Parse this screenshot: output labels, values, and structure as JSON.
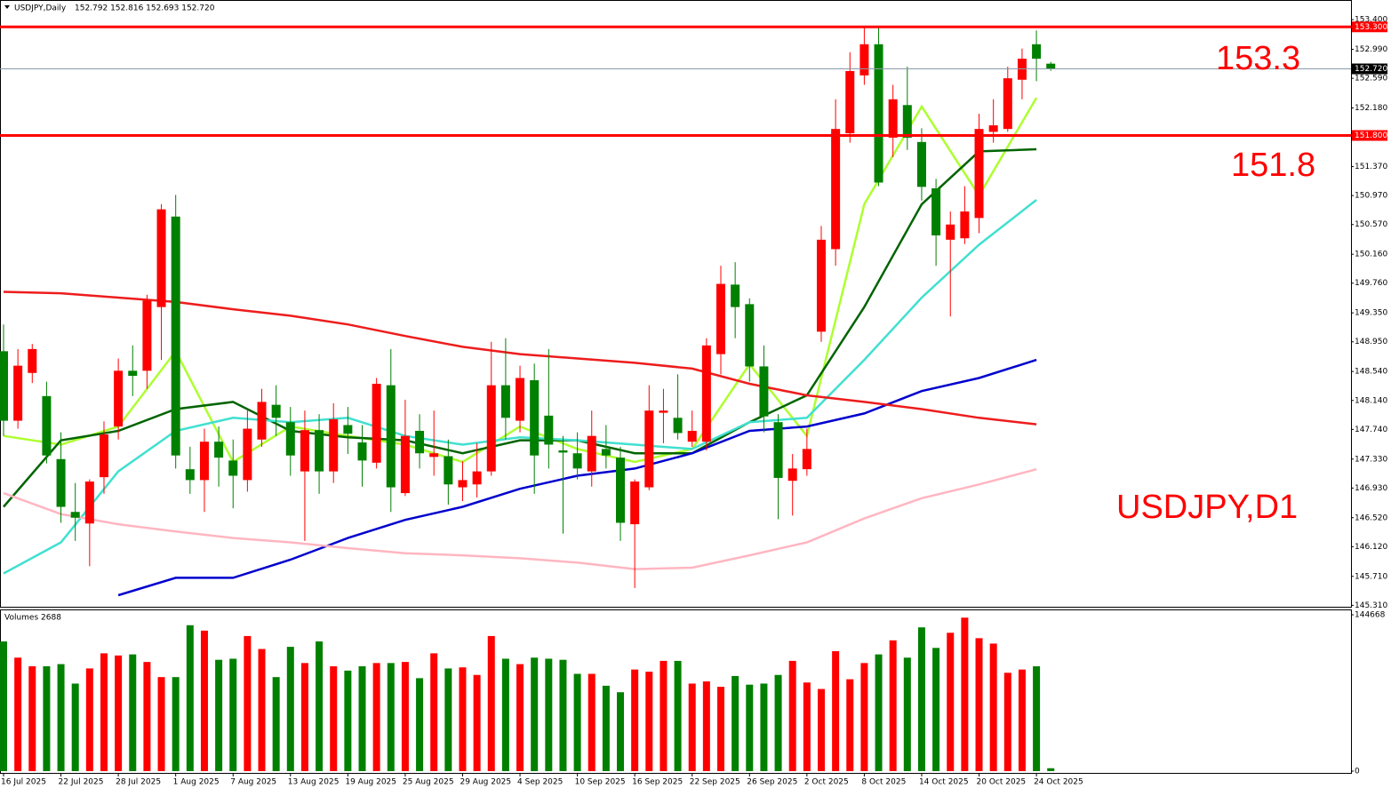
{
  "chart_data": [
    {
      "type": "candlestick",
      "title": "USDJPY,Daily",
      "quote": "152.792 152.816 152.693 152.720",
      "categories": [
        "16 Jul 2025",
        null,
        null,
        null,
        "22 Jul 2025",
        null,
        null,
        null,
        "28 Jul 2025",
        null,
        null,
        null,
        "1 Aug 2025",
        null,
        null,
        null,
        "7 Aug 2025",
        null,
        null,
        null,
        "13 Aug 2025",
        null,
        null,
        null,
        "19 Aug 2025",
        null,
        null,
        null,
        "25 Aug 2025",
        null,
        null,
        null,
        "29 Aug 2025",
        null,
        null,
        null,
        "4 Sep 2025",
        null,
        null,
        null,
        "10 Sep 2025",
        null,
        null,
        null,
        "16 Sep 2025",
        null,
        null,
        null,
        "22 Sep 2025",
        null,
        null,
        null,
        "26 Sep 2025",
        null,
        null,
        null,
        "2 Oct 2025",
        null,
        null,
        null,
        "8 Oct 2025",
        null,
        null,
        null,
        "14 Oct 2025",
        null,
        null,
        null,
        "20 Oct 2025",
        null,
        null,
        null,
        "24 Oct 2025",
        null
      ],
      "open": [
        148.82,
        147.86,
        148.52,
        148.2,
        147.33,
        146.6,
        146.44,
        147.08,
        147.78,
        148.55,
        148.55,
        149.43,
        150.68,
        147.19,
        147.04,
        147.57,
        147.31,
        147.04,
        147.6,
        148.08,
        147.84,
        147.16,
        147.73,
        147.16,
        147.8,
        147.56,
        147.28,
        148.35,
        146.86,
        147.72,
        147.36,
        147.37,
        146.94,
        146.98,
        147.16,
        148.35,
        147.86,
        148.42,
        147.93,
        147.45,
        147.41,
        147.16,
        147.47,
        147.35,
        146.43,
        146.94,
        147.97,
        147.9,
        147.57,
        147.57,
        148.78,
        149.74,
        149.47,
        148.61,
        147.84,
        147.03,
        147.19,
        149.09,
        150.23,
        151.83,
        152.63,
        153.06,
        151.77,
        152.22,
        151.71,
        151.07,
        150.36,
        150.38,
        150.66,
        151.85,
        151.89,
        152.57,
        153.06,
        152.792
      ],
      "high": [
        149.19,
        148.85,
        148.92,
        148.4,
        147.7,
        147.0,
        147.05,
        147.85,
        148.72,
        148.9,
        149.6,
        150.85,
        150.98,
        147.5,
        147.75,
        147.78,
        147.6,
        148.0,
        148.3,
        148.35,
        148.05,
        148.0,
        147.95,
        148.1,
        148.05,
        147.8,
        148.45,
        148.85,
        148.15,
        147.95,
        148.0,
        147.6,
        147.3,
        147.55,
        148.95,
        149.0,
        148.62,
        148.65,
        148.85,
        147.65,
        147.7,
        148.0,
        147.8,
        147.5,
        147.05,
        148.35,
        148.3,
        148.5,
        148.0,
        149.0,
        150.0,
        150.05,
        149.55,
        148.9,
        147.95,
        147.4,
        147.75,
        150.55,
        152.3,
        152.95,
        153.3,
        153.3,
        152.5,
        152.75,
        151.9,
        151.2,
        150.75,
        151.1,
        152.1,
        152.3,
        152.75,
        153.0,
        153.25,
        152.816
      ],
      "low": [
        147.65,
        147.75,
        148.38,
        147.27,
        146.45,
        146.2,
        145.85,
        146.85,
        147.6,
        148.2,
        148.3,
        148.7,
        147.2,
        146.85,
        146.6,
        146.95,
        146.65,
        146.88,
        147.5,
        147.65,
        147.1,
        146.2,
        146.85,
        147.0,
        147.4,
        146.95,
        147.2,
        146.6,
        146.82,
        147.2,
        147.1,
        146.7,
        146.75,
        146.8,
        147.1,
        147.6,
        147.7,
        146.85,
        147.2,
        146.3,
        147.05,
        146.95,
        147.2,
        146.2,
        145.55,
        146.9,
        147.55,
        147.6,
        147.5,
        147.45,
        148.5,
        149.0,
        148.4,
        147.7,
        146.5,
        146.55,
        147.1,
        148.95,
        150.0,
        151.7,
        152.5,
        151.1,
        151.5,
        151.6,
        150.9,
        150.0,
        149.3,
        150.3,
        150.45,
        151.7,
        151.85,
        152.3,
        152.55,
        152.693
      ],
      "close": [
        147.86,
        148.62,
        148.85,
        147.38,
        146.67,
        146.52,
        147.02,
        147.67,
        148.55,
        148.48,
        149.52,
        150.78,
        147.38,
        147.04,
        147.57,
        147.35,
        147.1,
        147.75,
        148.12,
        147.9,
        147.38,
        147.73,
        147.16,
        147.88,
        147.68,
        147.31,
        148.37,
        146.94,
        147.65,
        147.41,
        147.41,
        146.98,
        147.04,
        147.16,
        148.35,
        147.9,
        148.45,
        147.38,
        147.53,
        147.42,
        147.2,
        147.65,
        147.38,
        146.45,
        147.02,
        148.0,
        148.0,
        147.69,
        147.72,
        148.9,
        149.75,
        149.43,
        148.61,
        147.92,
        147.07,
        147.2,
        147.47,
        150.36,
        151.89,
        152.69,
        153.06,
        151.15,
        152.3,
        151.77,
        151.09,
        150.42,
        150.57,
        150.75,
        151.89,
        151.94,
        152.59,
        152.86,
        152.86,
        152.72
      ],
      "up_color": "#ff0000",
      "down_color": "#008000",
      "ylim": [
        145.29,
        153.61
      ],
      "yticks": [
        {
          "value": 153.4,
          "label": "153.400"
        },
        {
          "value": 152.99,
          "label": "152.990"
        },
        {
          "value": 152.59,
          "label": "152.590"
        },
        {
          "value": 152.18,
          "label": "152.180"
        },
        {
          "value": 151.78,
          "label": "151.780"
        },
        {
          "value": 151.37,
          "label": "151.370"
        },
        {
          "value": 150.97,
          "label": "150.970"
        },
        {
          "value": 150.57,
          "label": "150.570"
        },
        {
          "value": 150.16,
          "label": "150.160"
        },
        {
          "value": 149.76,
          "label": "149.760"
        },
        {
          "value": 149.35,
          "label": "149.350"
        },
        {
          "value": 148.95,
          "label": "148.950"
        },
        {
          "value": 148.54,
          "label": "148.540"
        },
        {
          "value": 148.14,
          "label": "148.140"
        },
        {
          "value": 147.74,
          "label": "147.740"
        },
        {
          "value": 147.33,
          "label": "147.330"
        },
        {
          "value": 146.93,
          "label": "146.930"
        },
        {
          "value": 146.52,
          "label": "146.520"
        },
        {
          "value": 146.12,
          "label": "146.120"
        },
        {
          "value": 145.71,
          "label": "145.710"
        },
        {
          "value": 145.31,
          "label": "145.310"
        }
      ],
      "hlines": [
        {
          "value": 153.3,
          "axis_label": "153.300",
          "text": "153.3",
          "color": "#ff0000"
        },
        {
          "value": 151.8,
          "axis_label": "151.800",
          "text": "151.8",
          "color": "#ff0000"
        }
      ],
      "current_price": {
        "value": 152.72,
        "label": "152.720"
      },
      "annotation": "USDJPY,D1",
      "overlays": [
        {
          "color": "#adff2f",
          "x": [
            "16 Jul 2025",
            "22 Jul 2025",
            "28 Jul 2025",
            "1 Aug 2025",
            "7 Aug 2025",
            "13 Aug 2025",
            "19 Aug 2025",
            "25 Aug 2025",
            "29 Aug 2025",
            "4 Sep 2025",
            "10 Sep 2025",
            "16 Sep 2025",
            "22 Sep 2025",
            "26 Sep 2025",
            "2 Oct 2025",
            "8 Oct 2025",
            "14 Oct 2025",
            "20 Oct 2025",
            "24 Oct 2025"
          ],
          "values": [
            147.65,
            147.53,
            147.78,
            148.82,
            147.29,
            147.78,
            147.65,
            147.53,
            147.29,
            147.78,
            147.47,
            147.29,
            147.47,
            148.64,
            147.65,
            150.85,
            152.2,
            150.97,
            152.32
          ]
        },
        {
          "color": "#006400",
          "x": [
            "16 Jul 2025",
            "22 Jul 2025",
            "28 Jul 2025",
            "1 Aug 2025",
            "7 Aug 2025",
            "13 Aug 2025",
            "19 Aug 2025",
            "25 Aug 2025",
            "29 Aug 2025",
            "4 Sep 2025",
            "10 Sep 2025",
            "16 Sep 2025",
            "22 Sep 2025",
            "26 Sep 2025",
            "2 Oct 2025",
            "8 Oct 2025",
            "14 Oct 2025",
            "20 Oct 2025",
            "24 Oct 2025"
          ],
          "values": [
            146.67,
            147.59,
            147.72,
            148.02,
            148.12,
            147.72,
            147.63,
            147.59,
            147.41,
            147.59,
            147.59,
            147.41,
            147.41,
            147.84,
            148.21,
            149.43,
            150.85,
            151.58,
            151.61
          ]
        },
        {
          "color": "#40e0d0",
          "x": [
            "16 Jul 2025",
            "22 Jul 2025",
            "28 Jul 2025",
            "1 Aug 2025",
            "7 Aug 2025",
            "13 Aug 2025",
            "19 Aug 2025",
            "25 Aug 2025",
            "29 Aug 2025",
            "4 Sep 2025",
            "10 Sep 2025",
            "16 Sep 2025",
            "22 Sep 2025",
            "26 Sep 2025",
            "2 Oct 2025",
            "8 Oct 2025",
            "14 Oct 2025",
            "20 Oct 2025",
            "24 Oct 2025"
          ],
          "values": [
            145.75,
            146.18,
            147.16,
            147.72,
            147.9,
            147.84,
            147.9,
            147.65,
            147.53,
            147.63,
            147.59,
            147.53,
            147.47,
            147.84,
            147.9,
            148.7,
            149.56,
            150.29,
            150.91
          ]
        },
        {
          "color": "#0000cd",
          "x": [
            "16 Jul 2025",
            "22 Jul 2025",
            "28 Jul 2025",
            "1 Aug 2025",
            "7 Aug 2025",
            "13 Aug 2025",
            "19 Aug 2025",
            "25 Aug 2025",
            "29 Aug 2025",
            "4 Sep 2025",
            "10 Sep 2025",
            "16 Sep 2025",
            "22 Sep 2025",
            "26 Sep 2025",
            "2 Oct 2025",
            "8 Oct 2025",
            "14 Oct 2025",
            "20 Oct 2025",
            "24 Oct 2025"
          ],
          "values": [
            null,
            null,
            145.45,
            145.69,
            145.69,
            145.94,
            146.24,
            146.49,
            146.67,
            146.92,
            147.1,
            147.2,
            147.41,
            147.72,
            147.78,
            147.96,
            148.27,
            148.45,
            148.7
          ]
        },
        {
          "color": "#ee1c1c",
          "x": [
            "16 Jul 2025",
            "22 Jul 2025",
            "28 Jul 2025",
            "1 Aug 2025",
            "7 Aug 2025",
            "13 Aug 2025",
            "19 Aug 2025",
            "25 Aug 2025",
            "29 Aug 2025",
            "4 Sep 2025",
            "10 Sep 2025",
            "16 Sep 2025",
            "22 Sep 2025",
            "26 Sep 2025",
            "2 Oct 2025",
            "8 Oct 2025",
            "14 Oct 2025",
            "20 Oct 2025",
            "24 Oct 2025"
          ],
          "values": [
            149.64,
            149.62,
            149.56,
            149.5,
            149.4,
            149.31,
            149.19,
            149.03,
            148.88,
            148.78,
            148.72,
            148.66,
            148.58,
            148.37,
            148.21,
            148.12,
            148.02,
            147.9,
            147.81
          ]
        },
        {
          "color": "#ffb6c1",
          "x": [
            "16 Jul 2025",
            "22 Jul 2025",
            "28 Jul 2025",
            "1 Aug 2025",
            "7 Aug 2025",
            "13 Aug 2025",
            "19 Aug 2025",
            "25 Aug 2025",
            "29 Aug 2025",
            "4 Sep 2025",
            "10 Sep 2025",
            "16 Sep 2025",
            "22 Sep 2025",
            "26 Sep 2025",
            "2 Oct 2025",
            "8 Oct 2025",
            "14 Oct 2025",
            "20 Oct 2025",
            "24 Oct 2025"
          ],
          "values": [
            146.86,
            146.57,
            146.43,
            146.33,
            146.24,
            146.18,
            146.1,
            146.03,
            146.0,
            145.96,
            145.9,
            145.81,
            145.83,
            146.0,
            146.18,
            146.51,
            146.79,
            146.98,
            147.19
          ]
        }
      ]
    },
    {
      "type": "bar",
      "title": "Volumes 2688",
      "values": [
        120000,
        105000,
        97000,
        97000,
        99000,
        81000,
        95000,
        109000,
        107000,
        108000,
        101000,
        87000,
        87000,
        135000,
        130000,
        103000,
        104000,
        125000,
        113000,
        87000,
        115000,
        100000,
        120000,
        97000,
        93000,
        97000,
        100000,
        100000,
        101000,
        86000,
        109000,
        95000,
        96000,
        89000,
        125000,
        104000,
        99000,
        105000,
        104000,
        103000,
        90000,
        90000,
        79000,
        73000,
        94000,
        92000,
        102000,
        102000,
        81000,
        83000,
        78000,
        88000,
        80000,
        81000,
        89000,
        102000,
        82000,
        76000,
        111000,
        85000,
        100000,
        108000,
        121000,
        105000,
        133000,
        114000,
        128000,
        142000,
        123000,
        118000,
        91000,
        94000,
        97000,
        2688
      ],
      "ylim": [
        0,
        144668
      ],
      "yticks": [
        144668,
        0
      ]
    }
  ]
}
